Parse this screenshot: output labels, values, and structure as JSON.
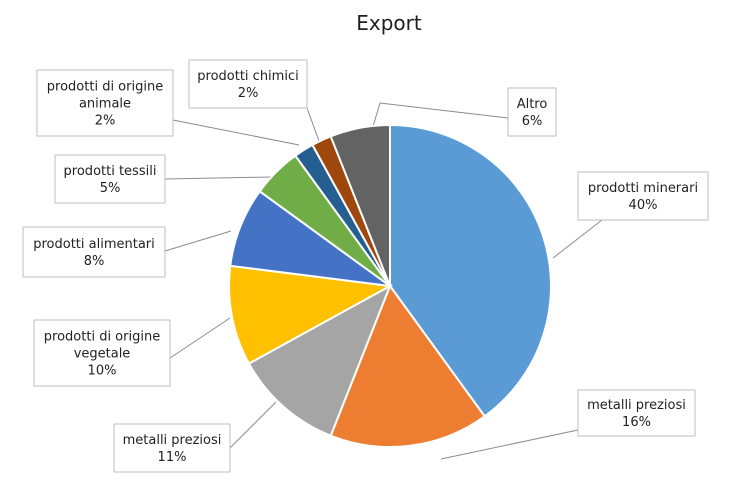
{
  "chart_data": {
    "type": "pie",
    "title": "Export",
    "slices": [
      {
        "name": "prodotti minerari",
        "value": 40,
        "label": "40%",
        "color": "#5b9bd5"
      },
      {
        "name": "metalli preziosi",
        "value": 16,
        "label": "16%",
        "color": "#ed7d31"
      },
      {
        "name": "metalli preziosi",
        "value": 11,
        "label": "11%",
        "color": "#a5a5a5"
      },
      {
        "name": "prodotti di origine vegetale",
        "value": 10,
        "label": "10%",
        "color": "#ffc000"
      },
      {
        "name": "prodotti alimentari",
        "value": 8,
        "label": "8%",
        "color": "#4472c4"
      },
      {
        "name": "prodotti tessili",
        "value": 5,
        "label": "5%",
        "color": "#70ad47"
      },
      {
        "name": "prodotti di origine animale",
        "value": 2,
        "label": "2%",
        "color": "#255e91"
      },
      {
        "name": "prodotti chimici",
        "value": 2,
        "label": "2%",
        "color": "#9e480e"
      },
      {
        "name": "Altro",
        "value": 6,
        "label": "6%",
        "color": "#636363"
      }
    ],
    "start_angle": "12 o'clock",
    "direction": "clockwise",
    "legend": "none"
  }
}
